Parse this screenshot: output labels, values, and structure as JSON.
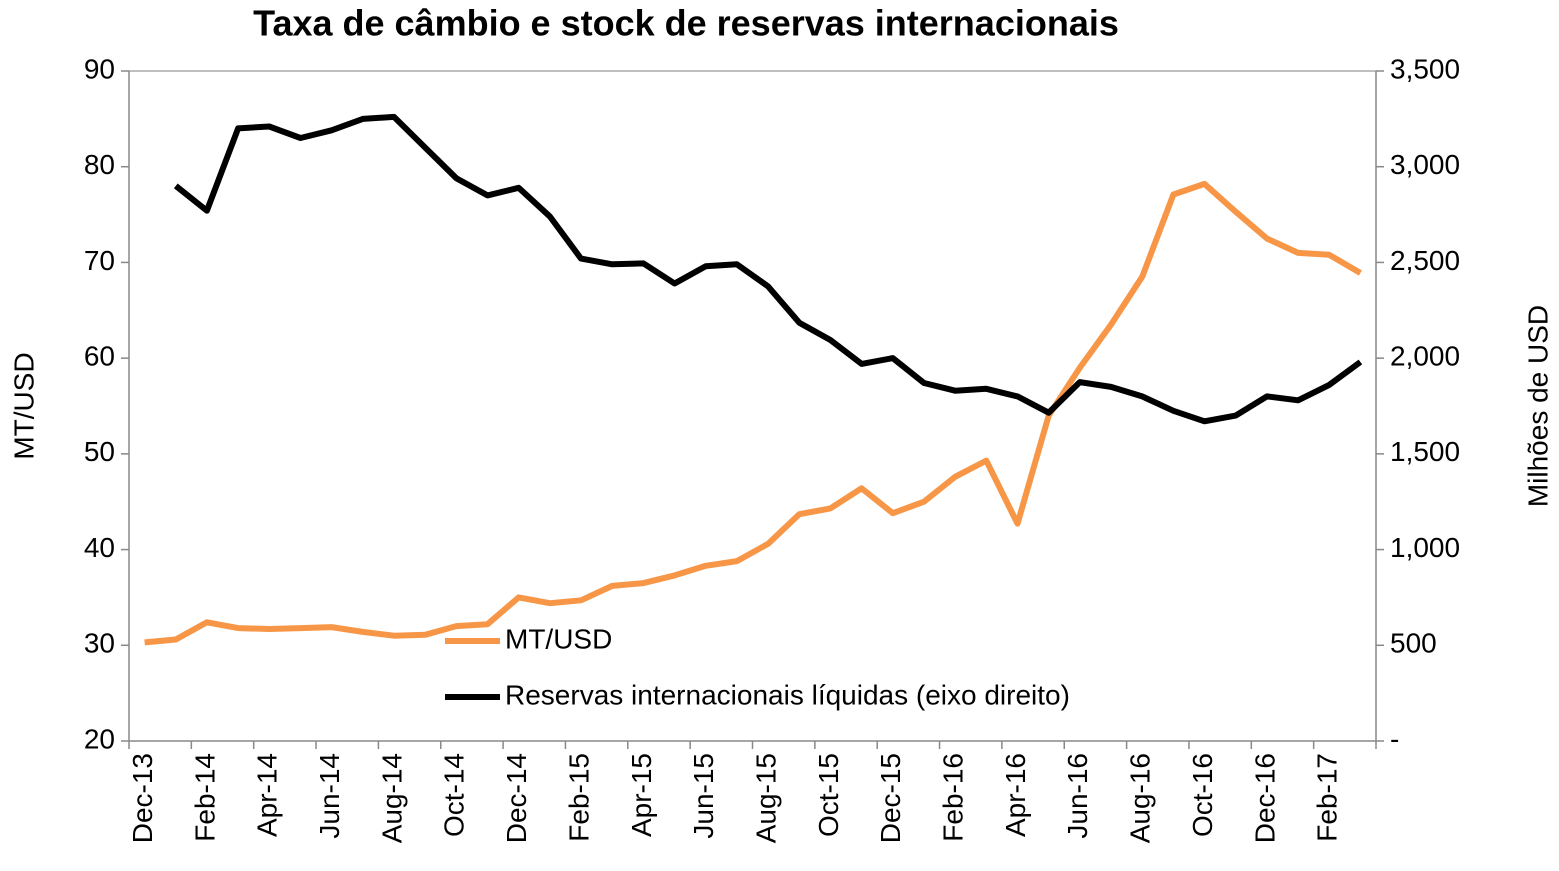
{
  "chart_data": {
    "type": "line",
    "title": "Taxa de câmbio e stock de reservas internacionais",
    "ylabel": "MT/USD",
    "y2label": "Milhões de USD",
    "categories": [
      "Dec-13",
      null,
      "Feb-14",
      null,
      "Apr-14",
      null,
      "Jun-14",
      null,
      "Aug-14",
      null,
      "Oct-14",
      null,
      "Dec-14",
      null,
      "Feb-15",
      null,
      "Apr-15",
      null,
      "Jun-15",
      null,
      "Aug-15",
      null,
      "Oct-15",
      null,
      "Dec-15",
      null,
      "Feb-16",
      null,
      "Apr-16",
      null,
      "Jun-16",
      null,
      "Aug-16",
      null,
      "Oct-16",
      null,
      "Dec-16",
      null,
      "Feb-17",
      null
    ],
    "series": [
      {
        "name": "MT/USD",
        "color": "#f79646",
        "axis": "y",
        "values": [
          30.3,
          30.6,
          32.4,
          31.8,
          31.7,
          31.8,
          31.9,
          31.4,
          31.0,
          31.1,
          32.0,
          32.2,
          35.0,
          34.4,
          34.7,
          36.2,
          36.5,
          37.3,
          38.3,
          38.8,
          40.6,
          43.7,
          44.3,
          46.4,
          43.8,
          45.0,
          47.6,
          49.3,
          42.7,
          54.0,
          59.0,
          63.5,
          68.5,
          77.1,
          78.2,
          75.3,
          72.5,
          71.0,
          70.8,
          68.9
        ]
      },
      {
        "name": "Reservas internacionais líquidas (eixo direito)",
        "color": "#000000",
        "axis": "y2",
        "values": [
          null,
          2900,
          2770,
          3200,
          3210,
          3150,
          3190,
          3250,
          3260,
          3100,
          2940,
          2850,
          2890,
          2740,
          2520,
          2490,
          2495,
          2390,
          2480,
          2490,
          2375,
          2185,
          2095,
          1970,
          2000,
          1870,
          1830,
          1840,
          1800,
          1715,
          1875,
          1850,
          1800,
          1725,
          1670,
          1700,
          1800,
          1780,
          1860,
          1980
        ]
      }
    ],
    "ylim": [
      20,
      90
    ],
    "yticks": [
      20,
      30,
      40,
      50,
      60,
      70,
      80,
      90
    ],
    "y2lim": [
      0,
      3500
    ],
    "y2ticks": [
      {
        "value": 0,
        "label": "-"
      },
      500,
      {
        "value": 1000,
        "label": "1,000"
      },
      {
        "value": 1500,
        "label": "1,500"
      },
      {
        "value": 2000,
        "label": "2,000"
      },
      {
        "value": 2500,
        "label": "2,500"
      },
      {
        "value": 3000,
        "label": "3,000"
      },
      {
        "value": 3500,
        "label": "3,500"
      }
    ],
    "grid": false,
    "legend": "center"
  }
}
